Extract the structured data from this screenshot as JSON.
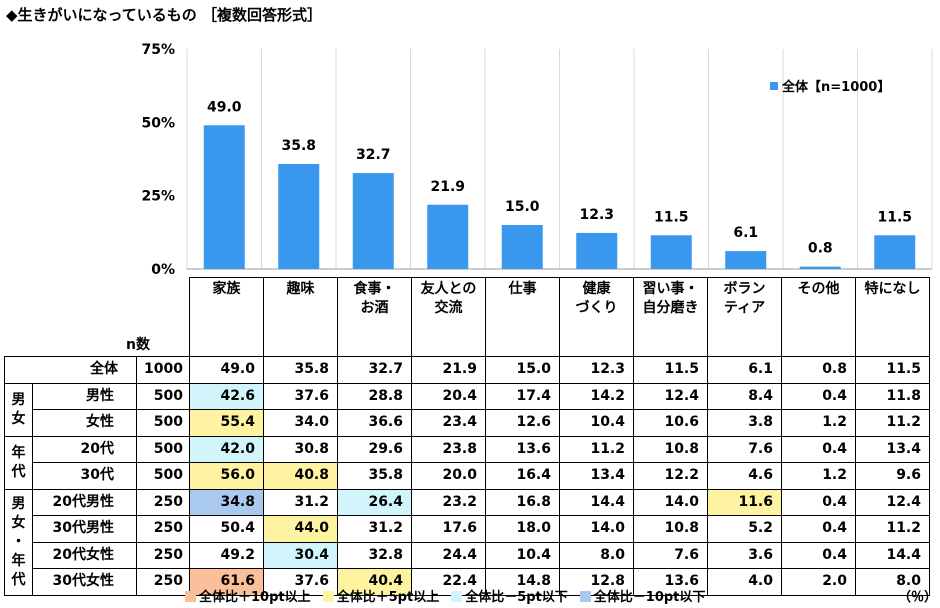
{
  "title": "◆生きがいになっているもの ［複数回答形式］",
  "colors": {
    "bar": "#3a97ee",
    "plus10": "#fbbf9a",
    "plus5": "#fdf3a1",
    "minus5": "#d2f5fb",
    "minus10": "#a9c9ef"
  },
  "chart_data": {
    "type": "bar",
    "categories": [
      "家族",
      "趣味",
      "食事・お酒",
      "友人との交流",
      "仕事",
      "健康づくり",
      "習い事・自分磨き",
      "ボランティア",
      "その他",
      "特になし"
    ],
    "series": [
      {
        "name": "全体【n=1000】",
        "values": [
          49.0,
          35.8,
          32.7,
          21.9,
          15.0,
          12.3,
          11.5,
          6.1,
          0.8,
          11.5
        ]
      }
    ],
    "value_labels": [
      "49.0",
      "35.8",
      "32.7",
      "21.9",
      "15.0",
      "12.3",
      "11.5",
      "6.1",
      "0.8",
      "11.5"
    ],
    "ylim": [
      0,
      75
    ],
    "yticks": [
      "0%",
      "25%",
      "50%",
      "75%"
    ],
    "ytick_values": [
      0,
      25,
      50,
      75
    ],
    "grid": "vertical",
    "legend_position": "top-right"
  },
  "table": {
    "n_label": "n数",
    "header_lines": [
      [
        "家族"
      ],
      [
        "趣味"
      ],
      [
        "食事・",
        "お酒"
      ],
      [
        "友人との",
        "交流"
      ],
      [
        "仕事"
      ],
      [
        "健康",
        "づくり"
      ],
      [
        "習い事・",
        "自分磨き"
      ],
      [
        "ボラン",
        "ティア"
      ],
      [
        "その他"
      ],
      [
        "特になし"
      ]
    ],
    "groups": {
      "gender": "男女",
      "age": "年代",
      "gender_age": "男女・年代"
    },
    "rows": [
      {
        "label": "全体",
        "n": "1000",
        "values": [
          "49.0",
          "35.8",
          "32.7",
          "21.9",
          "15.0",
          "12.3",
          "11.5",
          "6.1",
          "0.8",
          "11.5"
        ],
        "highlight": [
          "",
          "",
          "",
          "",
          "",
          "",
          "",
          "",
          "",
          ""
        ]
      },
      {
        "label": "男性",
        "n": "500",
        "values": [
          "42.6",
          "37.6",
          "28.8",
          "20.4",
          "17.4",
          "14.2",
          "12.4",
          "8.4",
          "0.4",
          "11.8"
        ],
        "highlight": [
          "minus5",
          "",
          "",
          "",
          "",
          "",
          "",
          "",
          "",
          ""
        ]
      },
      {
        "label": "女性",
        "n": "500",
        "values": [
          "55.4",
          "34.0",
          "36.6",
          "23.4",
          "12.6",
          "10.4",
          "10.6",
          "3.8",
          "1.2",
          "11.2"
        ],
        "highlight": [
          "plus5",
          "",
          "",
          "",
          "",
          "",
          "",
          "",
          "",
          ""
        ]
      },
      {
        "label": "20代",
        "n": "500",
        "values": [
          "42.0",
          "30.8",
          "29.6",
          "23.8",
          "13.6",
          "11.2",
          "10.8",
          "7.6",
          "0.4",
          "13.4"
        ],
        "highlight": [
          "minus5",
          "",
          "",
          "",
          "",
          "",
          "",
          "",
          "",
          ""
        ]
      },
      {
        "label": "30代",
        "n": "500",
        "values": [
          "56.0",
          "40.8",
          "35.8",
          "20.0",
          "16.4",
          "13.4",
          "12.2",
          "4.6",
          "1.2",
          "9.6"
        ],
        "highlight": [
          "plus5",
          "plus5",
          "",
          "",
          "",
          "",
          "",
          "",
          "",
          ""
        ]
      },
      {
        "label": "20代男性",
        "n": "250",
        "values": [
          "34.8",
          "31.2",
          "26.4",
          "23.2",
          "16.8",
          "14.4",
          "14.0",
          "11.6",
          "0.4",
          "12.4"
        ],
        "highlight": [
          "minus10",
          "",
          "minus5",
          "",
          "",
          "",
          "",
          "plus5",
          "",
          ""
        ]
      },
      {
        "label": "30代男性",
        "n": "250",
        "values": [
          "50.4",
          "44.0",
          "31.2",
          "17.6",
          "18.0",
          "14.0",
          "10.8",
          "5.2",
          "0.4",
          "11.2"
        ],
        "highlight": [
          "",
          "plus5",
          "",
          "",
          "",
          "",
          "",
          "",
          "",
          ""
        ]
      },
      {
        "label": "20代女性",
        "n": "250",
        "values": [
          "49.2",
          "30.4",
          "32.8",
          "24.4",
          "10.4",
          "8.0",
          "7.6",
          "3.6",
          "0.4",
          "14.4"
        ],
        "highlight": [
          "",
          "minus5",
          "",
          "",
          "",
          "",
          "",
          "",
          "",
          ""
        ]
      },
      {
        "label": "30代女性",
        "n": "250",
        "values": [
          "61.6",
          "37.6",
          "40.4",
          "22.4",
          "14.8",
          "12.8",
          "13.6",
          "4.0",
          "2.0",
          "8.0"
        ],
        "highlight": [
          "plus10",
          "",
          "plus5",
          "",
          "",
          "",
          "",
          "",
          "",
          ""
        ]
      }
    ]
  },
  "footer_legend": [
    {
      "key": "plus10",
      "label": "全体比＋10pt以上"
    },
    {
      "key": "plus5",
      "label": "全体比＋5pt以上"
    },
    {
      "key": "minus5",
      "label": "全体比－5pt以下"
    },
    {
      "key": "minus10",
      "label": "全体比－10pt以下"
    }
  ],
  "unit": "（％）"
}
